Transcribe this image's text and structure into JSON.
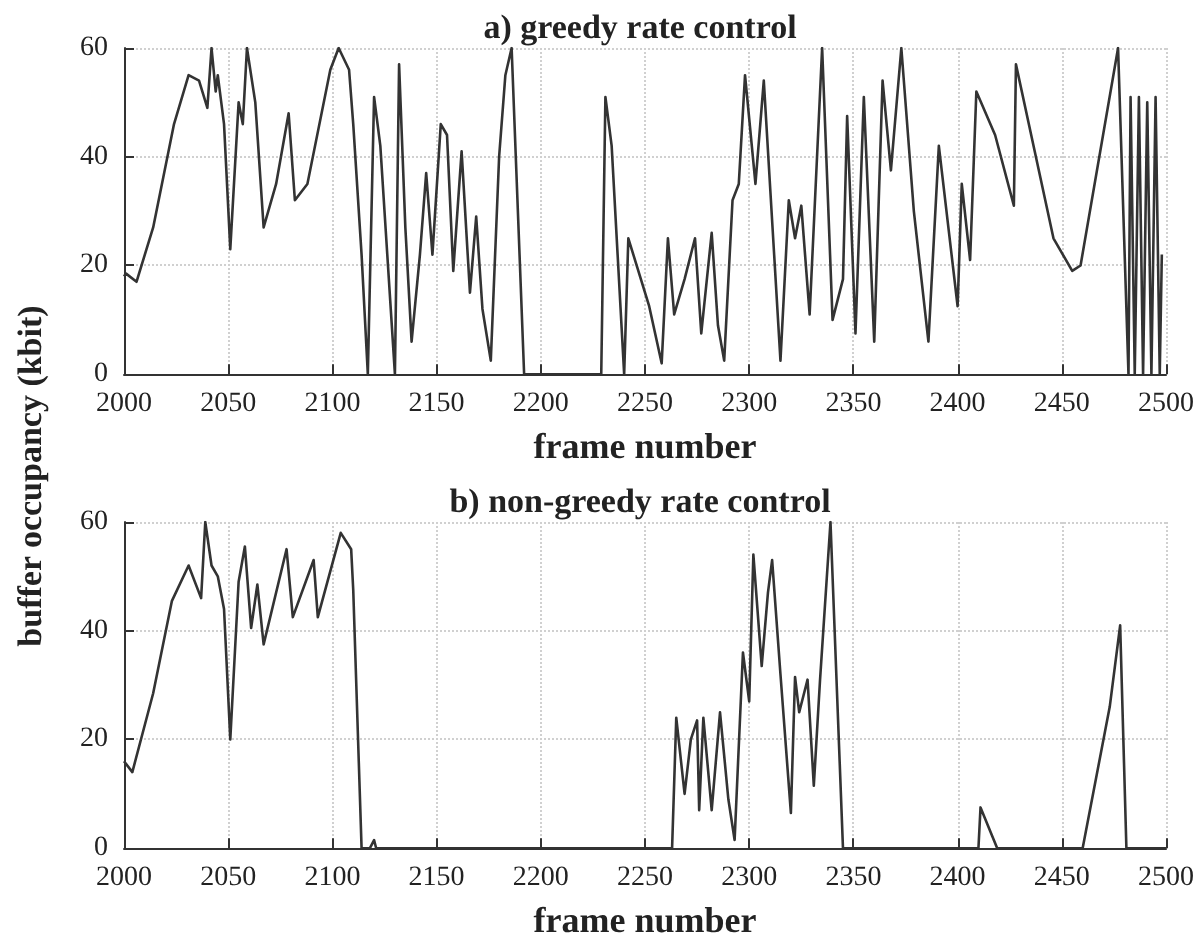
{
  "chart_data": [
    {
      "type": "line",
      "title": "a) greedy rate control",
      "xlabel": "frame number",
      "ylabel": "buffer occupancy (kbit)",
      "xlim": [
        2000,
        2500
      ],
      "xticks": [
        2000,
        2050,
        2100,
        2150,
        2200,
        2250,
        2300,
        2350,
        2400,
        2450,
        2500
      ],
      "ylim": [
        0,
        60
      ],
      "yticks": [
        0,
        20,
        40,
        60
      ],
      "grid": true,
      "marker": "none",
      "series": [
        {
          "color": "#333333",
          "x": [
            2000,
            2001,
            2006,
            2014,
            2024,
            2031,
            2036,
            2040,
            2042,
            2044,
            2045,
            2048,
            2051,
            2055,
            2057,
            2059,
            2063,
            2067,
            2073,
            2079,
            2082,
            2088,
            2099,
            2103,
            2108,
            2110,
            2114,
            2117,
            2120,
            2123,
            2130,
            2132,
            2135,
            2138,
            2142,
            2145,
            2148,
            2152,
            2155,
            2158,
            2162,
            2166,
            2169,
            2172,
            2176,
            2180,
            2183,
            2186,
            2192,
            2229,
            2231,
            2234,
            2240,
            2242,
            2252,
            2258,
            2261,
            2264,
            2269,
            2274,
            2277,
            2282,
            2285,
            2288,
            2292,
            2295,
            2298,
            2303,
            2307,
            2315,
            2319,
            2322,
            2325,
            2329,
            2335,
            2340,
            2345,
            2347,
            2351,
            2355,
            2360,
            2364,
            2368,
            2373,
            2379,
            2386,
            2391,
            2400,
            2402,
            2406,
            2409,
            2418,
            2427,
            2428,
            2437,
            2446,
            2455,
            2459,
            2477,
            2482,
            2483,
            2485,
            2487,
            2489,
            2491,
            2493,
            2495,
            2497,
            2498
          ],
          "values": [
            18,
            18.5,
            17,
            27,
            46,
            55,
            54,
            49,
            60,
            52,
            55,
            46,
            23,
            50,
            46,
            60,
            50,
            27,
            35,
            48,
            32,
            35,
            56,
            60,
            56,
            46,
            22,
            0,
            51,
            42,
            0,
            57,
            27,
            6,
            22,
            37,
            22,
            46,
            44,
            19,
            41,
            15,
            29,
            12,
            2.5,
            40,
            55,
            60,
            0,
            0,
            51,
            42,
            0,
            25,
            12.5,
            2,
            25,
            11,
            17.5,
            25,
            7.5,
            26,
            9,
            2.5,
            32,
            35,
            55,
            35,
            54,
            2.5,
            32,
            25,
            31,
            11,
            60,
            10,
            17.5,
            47.5,
            7.5,
            51,
            6,
            54,
            37.5,
            60,
            30,
            6,
            42,
            12.5,
            35,
            21,
            52,
            44,
            31,
            57,
            41,
            25,
            19,
            20,
            60,
            0,
            51,
            0,
            51,
            0,
            50,
            0,
            51,
            0,
            22
          ]
        }
      ]
    },
    {
      "type": "line",
      "title": "b) non-greedy rate control",
      "xlabel": "frame number",
      "xlim": [
        2000,
        2500
      ],
      "xticks": [
        2000,
        2050,
        2100,
        2150,
        2200,
        2250,
        2300,
        2350,
        2400,
        2450,
        2500
      ],
      "ylim": [
        0,
        60
      ],
      "yticks": [
        0,
        20,
        40,
        60
      ],
      "grid": true,
      "marker": "none",
      "series": [
        {
          "color": "#333333",
          "x": [
            2000,
            2004,
            2014,
            2023,
            2031,
            2037,
            2039,
            2042,
            2045,
            2048,
            2051,
            2055,
            2058,
            2061,
            2064,
            2067,
            2078,
            2081,
            2091,
            2093,
            2104,
            2109,
            2110,
            2114,
            2118,
            2120,
            2121,
            2263,
            2265,
            2269,
            2272,
            2275,
            2276,
            2278,
            2282,
            2286,
            2290,
            2293,
            2297,
            2300,
            2302,
            2306,
            2309,
            2311,
            2315,
            2320,
            2322,
            2324,
            2328,
            2331,
            2334,
            2339,
            2345,
            2410,
            2411,
            2419,
            2460,
            2473,
            2478,
            2481,
            2500
          ],
          "values": [
            16,
            14,
            28.5,
            45.5,
            52,
            46,
            60,
            52,
            50,
            44,
            20,
            49,
            55.5,
            40.5,
            48.5,
            37.5,
            55,
            42.5,
            53,
            42.5,
            58,
            55,
            47.5,
            0,
            0,
            1.5,
            0,
            0,
            24,
            10,
            20,
            23.5,
            7,
            24,
            7,
            25,
            9,
            1.5,
            36,
            27,
            54,
            33.5,
            47,
            53,
            32,
            6.5,
            31.5,
            25,
            31,
            11.5,
            31,
            60,
            0,
            0,
            7.5,
            0,
            0,
            26,
            41,
            0,
            0
          ]
        }
      ]
    }
  ]
}
